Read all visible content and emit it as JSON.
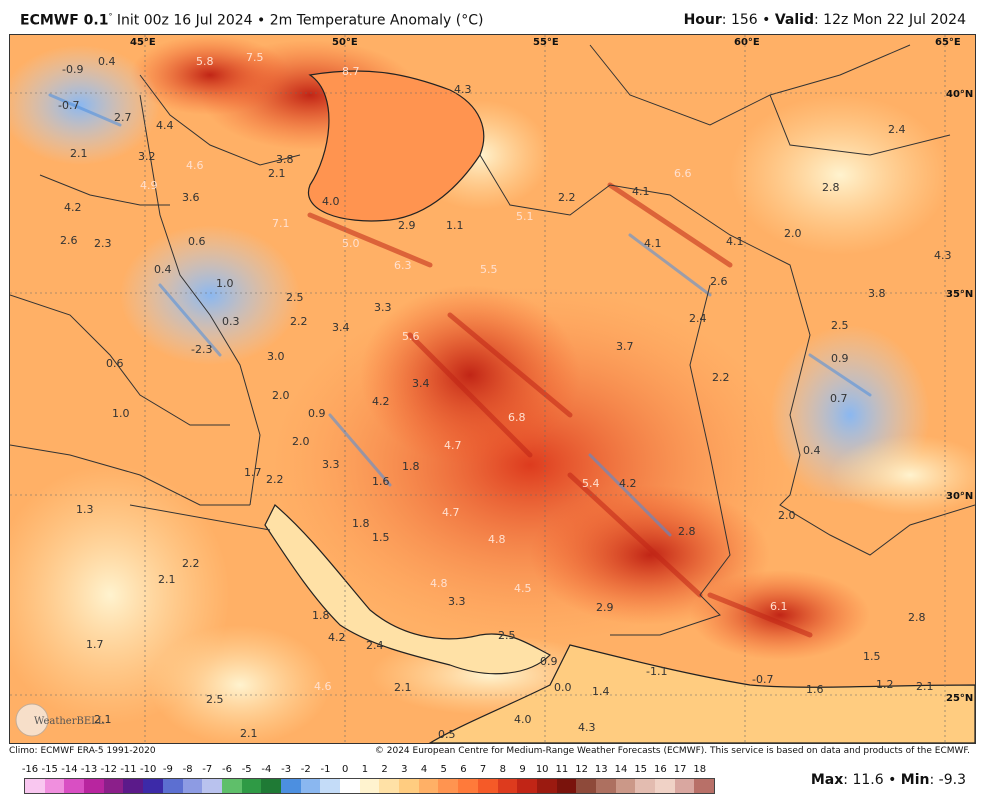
{
  "header": {
    "model": "ECMWF 0.1",
    "init": "Init 00z 16 Jul 2024",
    "product": "2m Temperature Anomaly (°C)",
    "hour_label": "Hour",
    "hour_value": "156",
    "valid_label": "Valid",
    "valid_value": "12z Mon 22 Jul 2024"
  },
  "map": {
    "lon_labels": [
      "45°E",
      "50°E",
      "55°E",
      "60°E",
      "65°E"
    ],
    "lat_labels": [
      "40°N",
      "35°N",
      "30°N",
      "25°N"
    ],
    "anomaly_labels": [
      "-0.9",
      "0.4",
      "5.8",
      "7.5",
      "8.7",
      "-0.7",
      "2.7",
      "4.3",
      "4.4",
      "2.1",
      "3.2",
      "4.6",
      "3.8",
      "2.1",
      "4.9",
      "3.6",
      "4.2",
      "4.0",
      "2.9",
      "1.1",
      "5.1",
      "2.2",
      "6.6",
      "4.1",
      "2.8",
      "2.4",
      "2.6",
      "2.3",
      "0.6",
      "7.1",
      "5.0",
      "6.3",
      "5.5",
      "4.1",
      "4.1",
      "2.0",
      "4.3",
      "0.4",
      "1.0",
      "2.5",
      "2.6",
      "3.8",
      "0.3",
      "2.2",
      "3.4",
      "3.3",
      "2.4",
      "2.5",
      "-2.3",
      "5.6",
      "3.7",
      "0.9",
      "0.6",
      "3.0",
      "3.4",
      "2.2",
      "1.0",
      "2.0",
      "0.9",
      "4.2",
      "6.8",
      "0.7",
      "2.0",
      "4.7",
      "0.4",
      "3.3",
      "1.8",
      "1.7",
      "2.2",
      "1.6",
      "5.4",
      "4.2",
      "1.3",
      "4.7",
      "1.8",
      "2.0",
      "1.5",
      "4.8",
      "2.8",
      "2.2",
      "2.1",
      "4.8",
      "4.5",
      "3.3",
      "6.1",
      "2.9",
      "1.8",
      "4.2",
      "2.4",
      "2.5",
      "2.8",
      "1.7",
      "0.9",
      "1.5",
      "-1.1",
      "2.1",
      "0.0",
      "-0.7",
      "1.4",
      "1.6",
      "1.2",
      "2.1",
      "4.6",
      "2.1",
      "2.5",
      "4.3",
      "4.0",
      "0.5",
      "2.1"
    ]
  },
  "credits": {
    "climo": "Climo: ECMWF ERA-5 1991-2020",
    "copyright": "© 2024 European Centre for Medium-Range Weather Forecasts (ECMWF). This service is based on data and products of the ECMWF."
  },
  "colorbar": {
    "ticks": [
      "-16",
      "-15",
      "-14",
      "-13",
      "-12",
      "-11",
      "-10",
      "-9",
      "-8",
      "-7",
      "-6",
      "-5",
      "-4",
      "-3",
      "-2",
      "-1",
      "0",
      "1",
      "2",
      "3",
      "4",
      "5",
      "6",
      "7",
      "8",
      "9",
      "10",
      "11",
      "12",
      "13",
      "14",
      "15",
      "16",
      "17",
      "18"
    ],
    "colors": [
      "#f9c7f0",
      "#f08fde",
      "#d94fc3",
      "#b8259f",
      "#8b1f8a",
      "#5b1a8a",
      "#3c2aa8",
      "#5c6fd1",
      "#8d9be3",
      "#b9c2ee",
      "#5fbf6a",
      "#2f9a45",
      "#1f7a35",
      "#4c8fe0",
      "#8ab7f0",
      "#c4dcf8",
      "#ffffff",
      "#fff3cf",
      "#ffe1a6",
      "#ffcc80",
      "#ffb066",
      "#ff9450",
      "#ff7a3a",
      "#f55a28",
      "#dd3b1e",
      "#c12516",
      "#9b1a10",
      "#7a130c",
      "#8e4a3a",
      "#ad7060",
      "#cb9888",
      "#e3bcb0",
      "#f0d2c6",
      "#d9a7a0",
      "#b87068"
    ],
    "logo_text": "WeatherBELL"
  },
  "stats": {
    "max_label": "Max",
    "max_value": "11.6",
    "min_label": "Min",
    "min_value": "-9.3"
  }
}
